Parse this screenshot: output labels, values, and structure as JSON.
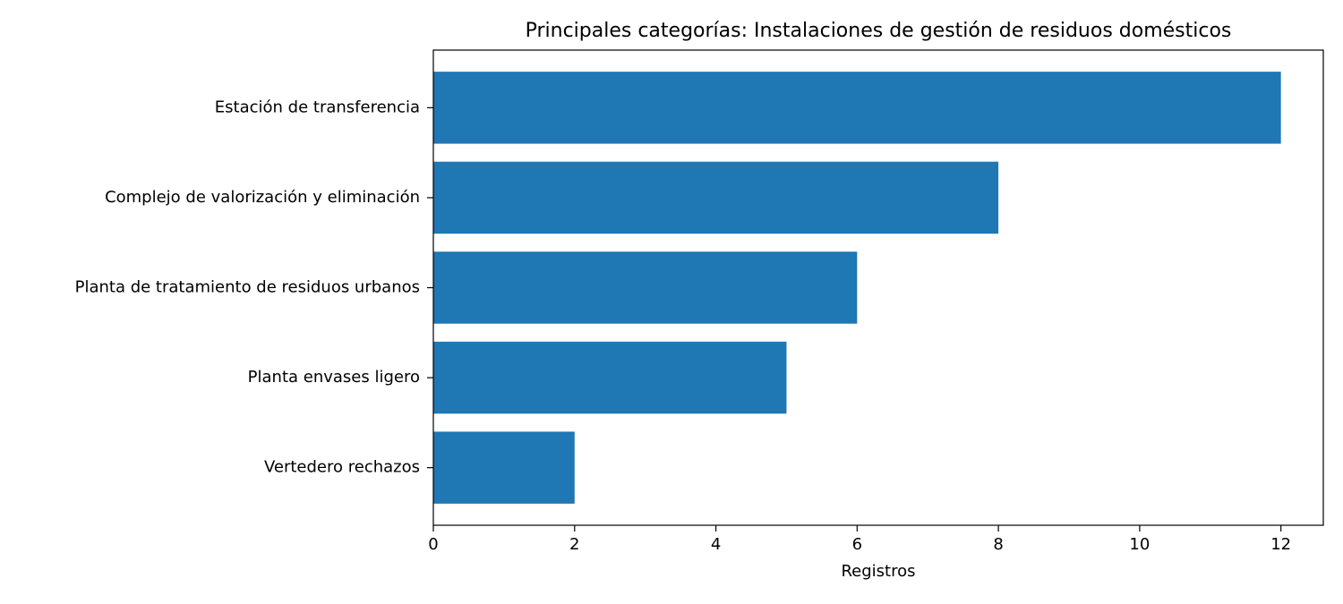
{
  "chart_data": {
    "type": "barh",
    "title": "Principales categorías: Instalaciones de gestión de residuos domésticos",
    "x_label": "Registros",
    "categories": [
      "Estación de transferencia",
      "Complejo de valorización y eliminación",
      "Planta de tratamiento de residuos urbanos",
      "Planta envases ligero",
      "Vertedero rechazos"
    ],
    "values": [
      12,
      8,
      6,
      5,
      2
    ],
    "color": "#1f77b4",
    "xlim": [
      0,
      12.6
    ],
    "xticks": [
      0,
      2,
      4,
      6,
      8,
      10,
      12
    ],
    "grid": false
  }
}
